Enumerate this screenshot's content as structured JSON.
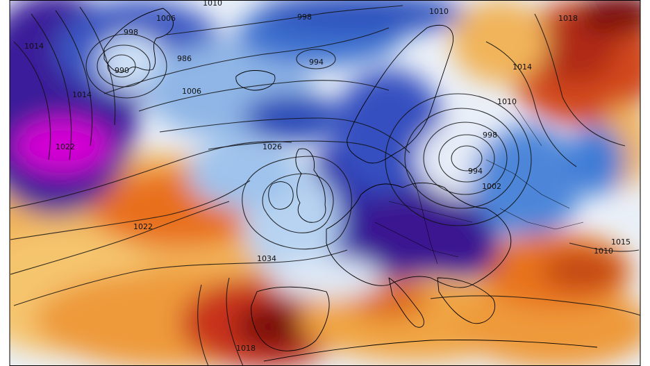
{
  "map": {
    "palette": {
      "very_cold": "#5b0fb0",
      "extreme_cold": "#d400d4",
      "cold": "#2a3fb5",
      "cool": "#3f7cd6",
      "mild_cool": "#a9cbee",
      "neutral": "#f4f6fb",
      "warm": "#f6c36a",
      "hot": "#ea7a1f",
      "very_hot": "#b8271a",
      "extreme_hot": "#6d0d0d",
      "isobar": "#111111",
      "coastline": "#000000"
    },
    "pressure_labels": [
      "998",
      "1010",
      "998",
      "1006",
      "990",
      "986",
      "994",
      "1010",
      "1010",
      "1014",
      "1014",
      "1022",
      "1006",
      "1026",
      "1018",
      "998",
      "994",
      "1002",
      "1022",
      "1034",
      "1010",
      "1018",
      "1014",
      "1015"
    ]
  }
}
